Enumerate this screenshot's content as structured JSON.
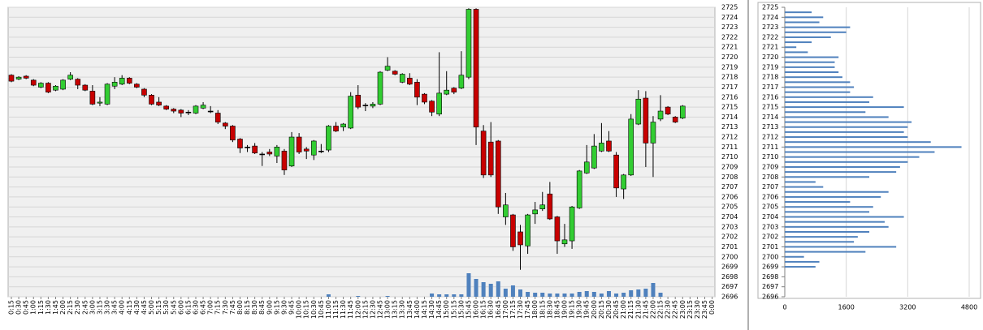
{
  "chart_data": [
    {
      "type": "candlestick",
      "categories": [
        "0:15",
        "0:30",
        "0:45",
        "1:00",
        "1:15",
        "1:30",
        "1:45",
        "2:00",
        "2:15",
        "2:30",
        "2:45",
        "3:00",
        "3:15",
        "3:30",
        "3:45",
        "4:00",
        "4:15",
        "4:30",
        "4:45",
        "5:00",
        "5:15",
        "5:30",
        "5:45",
        "6:00",
        "6:15",
        "6:30",
        "6:45",
        "7:00",
        "7:15",
        "7:30",
        "7:45",
        "8:00",
        "8:15",
        "8:30",
        "8:45",
        "9:00",
        "9:15",
        "9:30",
        "9:45",
        "10:00",
        "10:15",
        "10:30",
        "10:45",
        "11:00",
        "11:15",
        "11:30",
        "11:45",
        "12:00",
        "12:15",
        "12:30",
        "12:45",
        "13:00",
        "13:15",
        "13:30",
        "13:45",
        "14:00",
        "14:15",
        "14:30",
        "14:45",
        "15:00",
        "15:15",
        "15:30",
        "15:45",
        "16:00",
        "16:15",
        "16:30",
        "16:45",
        "17:00",
        "17:15",
        "17:30",
        "17:45",
        "18:00",
        "18:15",
        "18:30",
        "18:45",
        "19:00",
        "19:15",
        "19:30",
        "19:45",
        "20:00",
        "20:15",
        "20:30",
        "20:45",
        "21:00",
        "21:15",
        "21:30",
        "21:45",
        "22:00",
        "22:15",
        "22:30",
        "22:45",
        "23:00",
        "23:15",
        "23:30",
        "23:45",
        "0:00"
      ],
      "open": [
        2718.2,
        2717.8,
        2718.1,
        2717.7,
        2717.0,
        2717.4,
        2716.7,
        2716.8,
        2717.8,
        2717.8,
        2717.2,
        2716.6,
        2715.4,
        2715.3,
        2717.1,
        2717.3,
        2717.9,
        2717.3,
        2716.8,
        2716.2,
        2715.5,
        2715.1,
        2714.8,
        2714.7,
        2714.5,
        2714.4,
        2714.9,
        2714.6,
        2714.4,
        2713.4,
        2713.1,
        2711.8,
        2711.0,
        2711.1,
        2710.3,
        2710.5,
        2710.1,
        2710.6,
        2709.1,
        2712.0,
        2710.8,
        2710.2,
        2710.6,
        2710.7,
        2713.1,
        2713.0,
        2712.9,
        2716.2,
        2715.2,
        2715.1,
        2715.3,
        2718.7,
        2718.6,
        2717.5,
        2717.9,
        2717.5,
        2716.3,
        2715.6,
        2714.3,
        2716.3,
        2716.9,
        2716.9,
        2718.0,
        2724.8,
        2712.6,
        2711.5,
        2711.6,
        2704.0,
        2704.2,
        2702.5,
        2701.1,
        2704.3,
        2704.8,
        2706.3,
        2704.0,
        2701.3,
        2701.6,
        2704.9,
        2708.4,
        2708.9,
        2710.6,
        2711.6,
        2710.2,
        2706.8,
        2708.2,
        2713.3,
        2715.9,
        2711.4,
        2713.8,
        2715.0,
        2714.0,
        2713.9,
        null,
        null,
        null,
        null
      ],
      "high": [
        2718.3,
        2718.1,
        2718.2,
        2717.8,
        2717.5,
        2717.5,
        2717.2,
        2717.8,
        2718.5,
        2717.9,
        2717.3,
        2717.2,
        2716.0,
        2717.4,
        2718.0,
        2718.2,
        2718.0,
        2717.4,
        2716.9,
        2716.3,
        2716.0,
        2715.2,
        2714.9,
        2714.8,
        2714.7,
        2715.2,
        2715.5,
        2715.1,
        2714.7,
        2713.5,
        2713.2,
        2711.9,
        2711.2,
        2711.4,
        2710.5,
        2710.8,
        2711.2,
        2710.8,
        2712.5,
        2712.4,
        2711.0,
        2711.7,
        2711.3,
        2713.2,
        2713.5,
        2713.4,
        2716.5,
        2717.2,
        2715.4,
        2715.5,
        2718.6,
        2720.0,
        2718.7,
        2718.4,
        2718.4,
        2717.8,
        2716.4,
        2715.7,
        2720.5,
        2718.6,
        2717.0,
        2720.6,
        2724.9,
        2724.9,
        2713.2,
        2713.5,
        2711.7,
        2706.4,
        2704.3,
        2703.2,
        2704.3,
        2705.5,
        2706.5,
        2707.5,
        2704.1,
        2703.3,
        2705.1,
        2708.7,
        2711.2,
        2712.3,
        2713.4,
        2712.6,
        2710.5,
        2708.3,
        2714.3,
        2716.7,
        2716.6,
        2714.1,
        2716.2,
        2715.1,
        2714.1,
        2715.2,
        null,
        null,
        null,
        null
      ],
      "low": [
        2717.5,
        2717.7,
        2717.8,
        2717.1,
        2716.9,
        2716.4,
        2716.6,
        2716.7,
        2717.7,
        2716.8,
        2716.6,
        2715.2,
        2715.1,
        2715.2,
        2716.8,
        2717.2,
        2717.3,
        2716.9,
        2716.0,
        2715.2,
        2715.1,
        2714.7,
        2714.4,
        2714.0,
        2714.2,
        2714.3,
        2714.8,
        2714.4,
        2713.3,
        2712.8,
        2711.5,
        2710.4,
        2710.5,
        2710.3,
        2709.1,
        2710.1,
        2709.4,
        2708.2,
        2709.0,
        2710.3,
        2709.8,
        2709.7,
        2710.4,
        2710.5,
        2712.5,
        2712.6,
        2712.8,
        2714.8,
        2714.6,
        2714.9,
        2715.2,
        2718.6,
        2718.2,
        2717.4,
        2717.2,
        2715.2,
        2715.3,
        2714.1,
        2714.1,
        2716.2,
        2716.3,
        2716.8,
        2717.8,
        2711.2,
        2707.9,
        2708.0,
        2704.3,
        2703.2,
        2700.6,
        2698.7,
        2700.3,
        2703.3,
        2704.6,
        2703.7,
        2700.3,
        2701.0,
        2700.8,
        2704.8,
        2708.3,
        2708.8,
        2710.5,
        2710.5,
        2706.0,
        2705.8,
        2708.1,
        2713.2,
        2709.0,
        2708.0,
        2713.6,
        2714.2,
        2713.4,
        2713.8,
        null,
        null,
        null,
        null
      ],
      "close": [
        2717.6,
        2718.0,
        2717.9,
        2717.2,
        2717.4,
        2716.5,
        2717.1,
        2717.7,
        2718.2,
        2717.2,
        2716.7,
        2715.3,
        2715.5,
        2717.3,
        2717.5,
        2717.9,
        2717.4,
        2717.0,
        2716.2,
        2715.3,
        2715.2,
        2714.8,
        2714.6,
        2714.4,
        2714.5,
        2715.1,
        2715.2,
        2714.6,
        2713.5,
        2713.1,
        2711.7,
        2710.9,
        2711.0,
        2710.4,
        2710.3,
        2710.3,
        2711.0,
        2708.7,
        2712.0,
        2710.5,
        2710.6,
        2711.6,
        2710.6,
        2713.1,
        2712.6,
        2713.3,
        2716.1,
        2715.0,
        2715.2,
        2715.3,
        2718.5,
        2719.1,
        2718.3,
        2718.3,
        2717.3,
        2716.0,
        2715.5,
        2714.5,
        2716.4,
        2716.7,
        2716.5,
        2718.2,
        2724.8,
        2713.0,
        2708.2,
        2708.2,
        2705.0,
        2705.2,
        2701.0,
        2701.2,
        2704.2,
        2704.7,
        2705.2,
        2703.8,
        2701.6,
        2701.7,
        2705.0,
        2708.6,
        2709.5,
        2711.1,
        2711.4,
        2710.6,
        2706.9,
        2708.2,
        2713.8,
        2715.8,
        2711.4,
        2713.5,
        2714.6,
        2714.3,
        2713.5,
        2715.1,
        null,
        null,
        null,
        null
      ],
      "volume": {
        "color": "#4f81bd",
        "values": [
          0,
          0,
          0,
          0,
          0,
          0,
          0,
          0,
          0,
          0,
          0,
          0,
          0,
          0,
          0,
          0,
          0,
          0,
          0,
          0,
          0,
          0,
          0,
          0,
          0,
          0,
          0,
          0,
          0,
          0,
          0,
          0,
          0,
          0,
          0,
          0,
          0,
          0,
          0,
          0,
          0,
          0,
          0,
          3,
          0,
          0,
          0,
          1,
          0,
          0,
          0,
          1,
          0,
          0,
          0,
          0,
          0,
          4,
          3,
          3,
          3,
          3,
          29,
          22,
          18,
          16,
          19,
          10,
          14,
          9,
          6,
          5,
          5,
          4,
          4,
          4,
          4,
          6,
          7,
          6,
          4,
          7,
          4,
          5,
          8,
          9,
          10,
          17,
          5,
          0,
          0,
          0,
          null,
          null,
          null,
          null
        ]
      },
      "up_color": "#32cd32",
      "down_color": "#c80000",
      "ylim": [
        2696,
        2725
      ],
      "yticks": [
        2696,
        2697,
        2698,
        2699,
        2700,
        2701,
        2702,
        2703,
        2704,
        2705,
        2706,
        2707,
        2708,
        2709,
        2710,
        2711,
        2712,
        2713,
        2714,
        2715,
        2716,
        2717,
        2718,
        2719,
        2720,
        2721,
        2722,
        2723,
        2724,
        2725
      ],
      "grid": true
    },
    {
      "type": "barh",
      "color": "#4f81bd",
      "y": [
        2724.5,
        2724,
        2723.5,
        2723,
        2722.5,
        2722,
        2721.5,
        2721,
        2720.5,
        2720,
        2719.5,
        2719,
        2718.5,
        2718,
        2717.5,
        2717,
        2716.5,
        2716,
        2715.5,
        2715,
        2714.5,
        2714,
        2713.5,
        2713,
        2712.5,
        2712,
        2711.5,
        2711,
        2710.5,
        2710,
        2709.5,
        2709,
        2708.5,
        2708,
        2707.5,
        2707,
        2706.5,
        2706,
        2705.5,
        2705,
        2704.5,
        2704,
        2703.5,
        2703,
        2702.5,
        2702,
        2701.5,
        2701,
        2700.5,
        2700,
        2699.5,
        2699
      ],
      "values": [
        700,
        1000,
        900,
        1700,
        1600,
        1200,
        700,
        300,
        600,
        1400,
        1300,
        1300,
        1400,
        1500,
        1700,
        1800,
        1700,
        2300,
        2200,
        3100,
        2100,
        2700,
        3300,
        3200,
        3100,
        3200,
        3800,
        4600,
        3900,
        3500,
        3200,
        3000,
        2900,
        2200,
        800,
        1000,
        2700,
        2500,
        1700,
        2300,
        2200,
        3100,
        2600,
        2700,
        2200,
        1900,
        1800,
        2900,
        2100,
        500,
        900,
        800
      ],
      "xlim": [
        0,
        4800
      ],
      "xticks": [
        0,
        1600,
        3200,
        4800
      ],
      "ylim": [
        2696,
        2725
      ],
      "yticks": [
        2696,
        2697,
        2698,
        2699,
        2700,
        2701,
        2702,
        2703,
        2704,
        2705,
        2706,
        2707,
        2708,
        2709,
        2710,
        2711,
        2712,
        2713,
        2714,
        2715,
        2716,
        2717,
        2718,
        2719,
        2720,
        2721,
        2722,
        2723,
        2724,
        2725
      ],
      "grid": true
    }
  ]
}
